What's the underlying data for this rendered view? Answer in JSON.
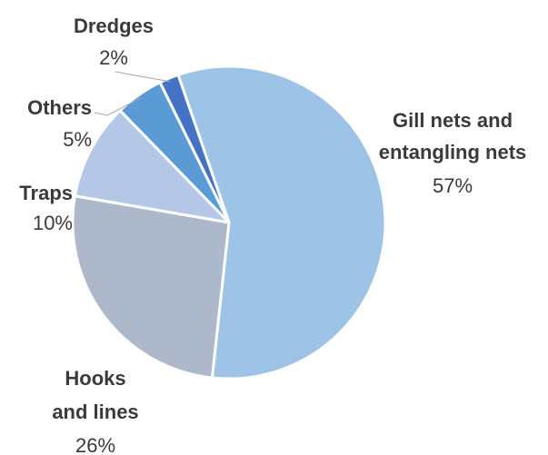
{
  "chart_data": {
    "type": "pie",
    "title": "",
    "slices": [
      {
        "label": "Gill nets and entangling nets",
        "label_lines": [
          "Gill nets and",
          "entangling nets"
        ],
        "value": 57,
        "value_label": "57%",
        "color": "#9dc3e6"
      },
      {
        "label": "Hooks and lines",
        "label_lines": [
          "Hooks",
          "and lines"
        ],
        "value": 26,
        "value_label": "26%",
        "color": "#adb9ca"
      },
      {
        "label": "Traps",
        "label_lines": [
          "Traps"
        ],
        "value": 10,
        "value_label": "10%",
        "color": "#b4c7e7"
      },
      {
        "label": "Others",
        "label_lines": [
          "Others"
        ],
        "value": 5,
        "value_label": "5%",
        "color": "#5b9bd5"
      },
      {
        "label": "Dredges",
        "label_lines": [
          "Dredges"
        ],
        "value": 2,
        "value_label": "2%",
        "color": "#4472c4"
      }
    ]
  }
}
